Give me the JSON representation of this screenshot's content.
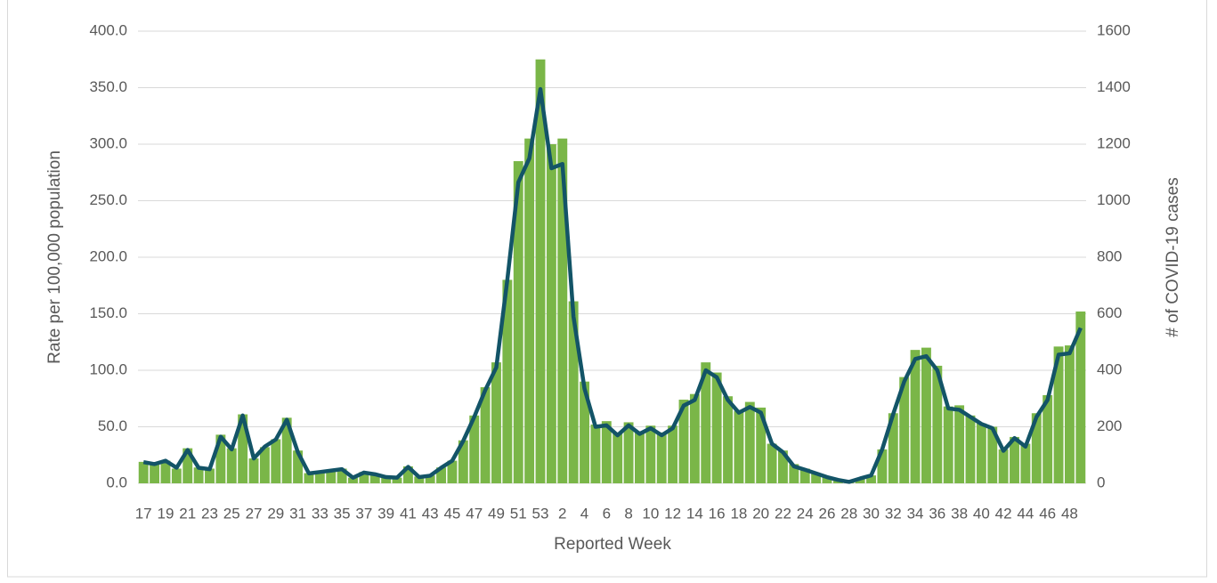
{
  "chart_data": {
    "type": "bar-line",
    "y_label": "Rate per 100,000 population",
    "y2_label": "# of COVID-19 cases",
    "x_label": "Reported Week",
    "categories": [
      "17",
      null,
      "19",
      null,
      "21",
      null,
      "23",
      null,
      "25",
      null,
      "27",
      null,
      "29",
      null,
      "31",
      null,
      "33",
      null,
      "35",
      null,
      "37",
      null,
      "39",
      null,
      "41",
      null,
      "43",
      null,
      "45",
      null,
      "47",
      null,
      "49",
      null,
      "51",
      null,
      "53",
      null,
      "2",
      null,
      "4",
      null,
      "6",
      null,
      "8",
      null,
      "10",
      null,
      "12",
      null,
      "14",
      null,
      "16",
      null,
      "18",
      null,
      "20",
      null,
      "22",
      null,
      "24",
      null,
      "26",
      null,
      "28",
      null,
      "30",
      null,
      "32",
      null,
      "34",
      null,
      "36",
      null,
      "38",
      null,
      "40",
      null,
      "42",
      null,
      "44",
      null,
      "46",
      null,
      "48",
      null
    ],
    "series": [
      {
        "type": "bar",
        "color": "#7ab648",
        "values": [
          19,
          17,
          20,
          13,
          31,
          14,
          13,
          43,
          31,
          61,
          22,
          32,
          39,
          58,
          29,
          9,
          10,
          11,
          13,
          5,
          10,
          8,
          6,
          5,
          15,
          6,
          7,
          14,
          20,
          38,
          60,
          85,
          107,
          180,
          285,
          305,
          375,
          300,
          305,
          161,
          90,
          52,
          55,
          45,
          54,
          46,
          51,
          45,
          51,
          74,
          79,
          107,
          98,
          77,
          64,
          72,
          67,
          35,
          29,
          17,
          13,
          9,
          6,
          3,
          1,
          4,
          7,
          30,
          62,
          94,
          118,
          120,
          104,
          68,
          69,
          60,
          53,
          50,
          30,
          41,
          35,
          62,
          78,
          121,
          122,
          152
        ]
      },
      {
        "type": "line",
        "axis": "y2",
        "color": "#135467",
        "values": [
          75,
          68,
          80,
          55,
          118,
          55,
          50,
          165,
          120,
          240,
          88,
          130,
          155,
          225,
          110,
          35,
          40,
          45,
          50,
          20,
          38,
          32,
          22,
          20,
          58,
          22,
          27,
          55,
          80,
          150,
          235,
          330,
          410,
          720,
          1065,
          1150,
          1395,
          1115,
          1130,
          590,
          335,
          200,
          205,
          170,
          205,
          175,
          195,
          170,
          195,
          275,
          295,
          400,
          375,
          295,
          250,
          270,
          250,
          140,
          110,
          60,
          48,
          35,
          22,
          12,
          5,
          17,
          28,
          120,
          245,
          360,
          440,
          450,
          400,
          265,
          260,
          235,
          210,
          195,
          115,
          160,
          130,
          235,
          295,
          455,
          460,
          550
        ]
      }
    ],
    "ylim": [
      0,
      400
    ],
    "yticks": [
      {
        "value": 0,
        "label": "0.0"
      },
      {
        "value": 50,
        "label": "50.0"
      },
      {
        "value": 100,
        "label": "100.0"
      },
      {
        "value": 150,
        "label": "150.0"
      },
      {
        "value": 200,
        "label": "200.0"
      },
      {
        "value": 250,
        "label": "250.0"
      },
      {
        "value": 300,
        "label": "300.0"
      },
      {
        "value": 350,
        "label": "350.0"
      },
      {
        "value": 400,
        "label": "400.0"
      }
    ],
    "y2lim": [
      0,
      1600
    ],
    "y2ticks": [
      0,
      200,
      400,
      600,
      800,
      1000,
      1200,
      1400,
      1600
    ],
    "grid": true
  }
}
